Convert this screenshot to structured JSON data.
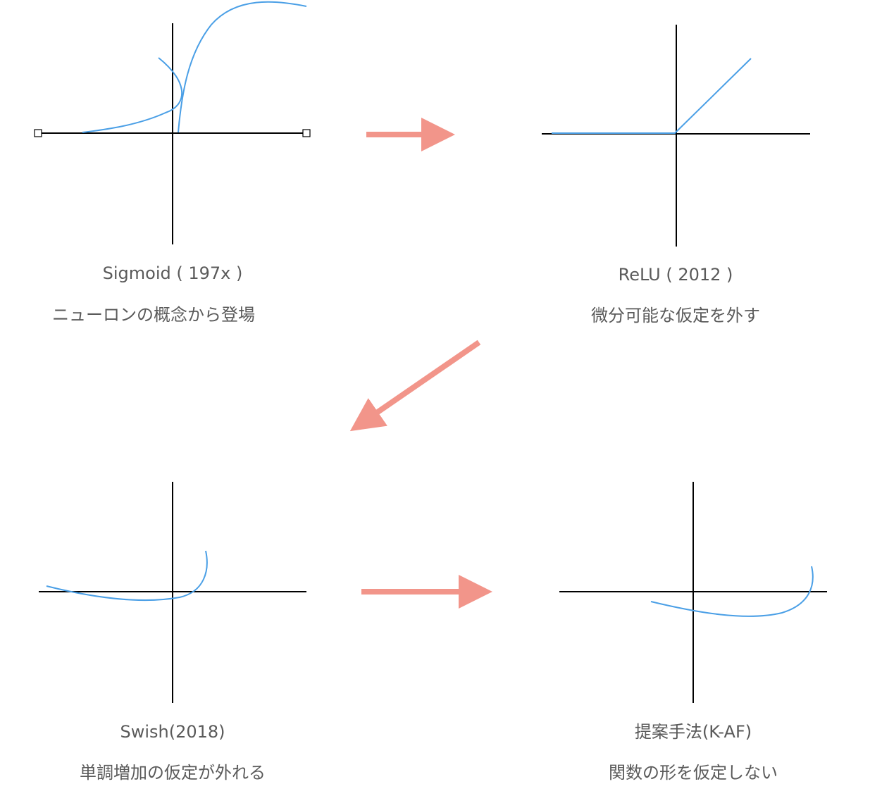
{
  "panels": [
    {
      "id": "sigmoid",
      "title": "Sigmoid ( 197x )",
      "caption": "ニューロンの概念から登場"
    },
    {
      "id": "relu",
      "title": "ReLU ( 2012 )",
      "caption": "微分可能な仮定を外す"
    },
    {
      "id": "swish",
      "title": "Swish(2018)",
      "caption": "単調増加の仮定が外れる"
    },
    {
      "id": "kaf",
      "title": "提案手法(K-AF)",
      "caption": "関数の形を仮定しない"
    }
  ],
  "colors": {
    "axis": "#000000",
    "curve": "#4a9fe6",
    "arrow": "#f2958a",
    "text": "#5a5a5a"
  }
}
